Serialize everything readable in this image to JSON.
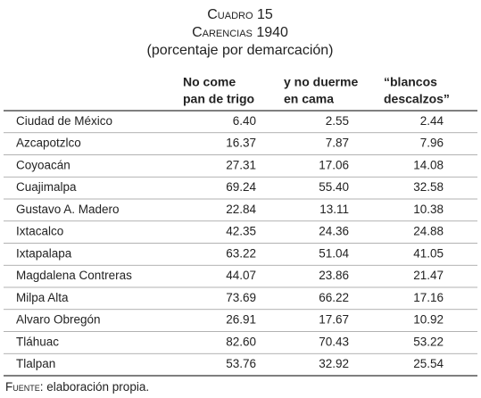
{
  "title": {
    "label": "Cuadro 15",
    "subject": "Carencias 1940",
    "note": "(porcentaje por demarcación)"
  },
  "table": {
    "columns": [
      {
        "lines": [
          "No come",
          "pan de trigo"
        ]
      },
      {
        "lines": [
          "y no duerme",
          "en cama"
        ]
      },
      {
        "lines": [
          "“blancos",
          "descalzos”"
        ]
      }
    ],
    "rows": [
      [
        "Ciudad de México",
        "6.40",
        "2.55",
        "2.44"
      ],
      [
        "Azcapotzlco",
        "16.37",
        "7.87",
        "7.96"
      ],
      [
        "Coyoacán",
        "27.31",
        "17.06",
        "14.08"
      ],
      [
        "Cuajimalpa",
        "69.24",
        "55.40",
        "32.58"
      ],
      [
        "Gustavo A. Madero",
        "22.84",
        "13.11",
        "10.38"
      ],
      [
        "Ixtacalco",
        "42.35",
        "24.36",
        "24.88"
      ],
      [
        "Ixtapalapa",
        "63.22",
        "51.04",
        "41.05"
      ],
      [
        "Magdalena Contreras",
        "44.07",
        "23.86",
        "21.47"
      ],
      [
        "Milpa Alta",
        "73.69",
        "66.22",
        "17.16"
      ],
      [
        "Alvaro Obregón",
        "26.91",
        "17.67",
        "10.92"
      ],
      [
        "Tláhuac",
        "82.60",
        "70.43",
        "53.22"
      ],
      [
        "Tlalpan",
        "53.76",
        "32.92",
        "25.54"
      ]
    ]
  },
  "source": {
    "label": "Fuente",
    "text": ": elaboración propia."
  }
}
